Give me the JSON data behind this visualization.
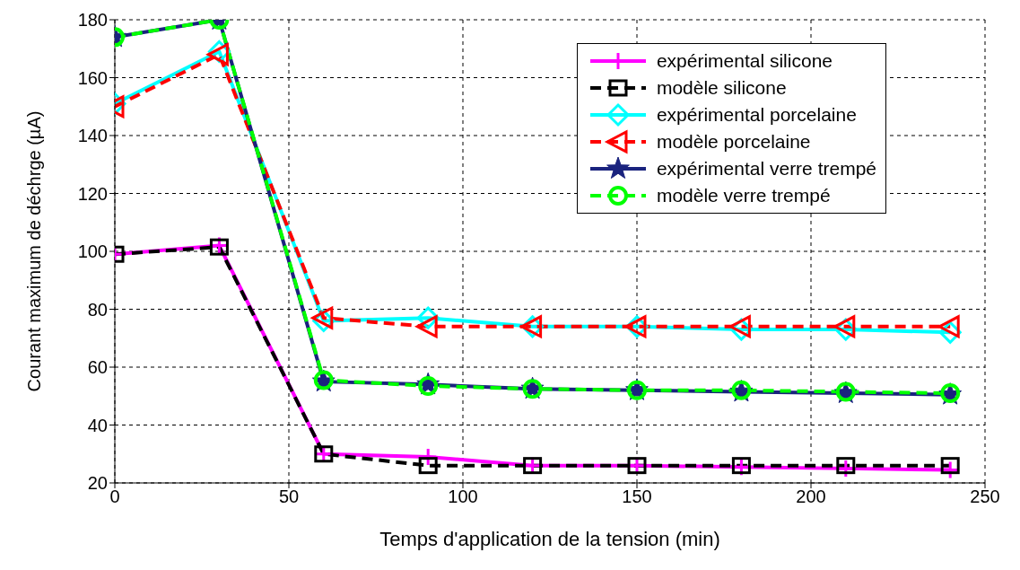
{
  "chart_data": {
    "type": "line",
    "xlabel": "Temps d'application de la tension (min)",
    "ylabel": "Courant maximum de déchrge (µA)",
    "x": [
      0,
      30,
      60,
      90,
      120,
      150,
      180,
      210,
      240
    ],
    "series": [
      {
        "name": "expérimental silicone",
        "color": "#ff00ff",
        "marker": "cross",
        "line_style": "solid",
        "values": [
          99,
          102,
          30,
          29,
          26,
          26,
          25.5,
          25,
          24.5
        ]
      },
      {
        "name": "modèle silicone",
        "color": "#000000",
        "marker": "square",
        "line_style": "dashed",
        "values": [
          99,
          101.5,
          30,
          26,
          26,
          26,
          26,
          26,
          26
        ]
      },
      {
        "name": "expérimental porcelaine",
        "color": "#00ffff",
        "marker": "diamond",
        "line_style": "solid",
        "values": [
          151,
          169,
          76,
          77,
          74,
          74,
          73,
          73,
          72
        ]
      },
      {
        "name": "modèle porcelaine",
        "color": "#ff0000",
        "marker": "triangle",
        "line_style": "dashed",
        "values": [
          150,
          168,
          77,
          74,
          74,
          74,
          74,
          74,
          74
        ]
      },
      {
        "name": "expérimental verre trempé",
        "color": "#1a237e",
        "marker": "star",
        "line_style": "solid",
        "values": [
          174,
          180,
          55,
          54,
          52.5,
          52,
          51.5,
          51,
          50.5
        ]
      },
      {
        "name": "modèle verre trempé",
        "color": "#00ff00",
        "marker": "circle",
        "line_style": "dashed",
        "values": [
          174,
          180,
          55.5,
          53.5,
          52.5,
          52,
          52,
          51.5,
          51
        ]
      }
    ],
    "xlim": [
      0,
      250
    ],
    "xticks": [
      0,
      50,
      100,
      150,
      200,
      250
    ],
    "ylim": [
      20,
      180
    ],
    "yticks": [
      20,
      40,
      60,
      80,
      100,
      120,
      140,
      160,
      180
    ],
    "grid": true,
    "legend": "top right"
  }
}
